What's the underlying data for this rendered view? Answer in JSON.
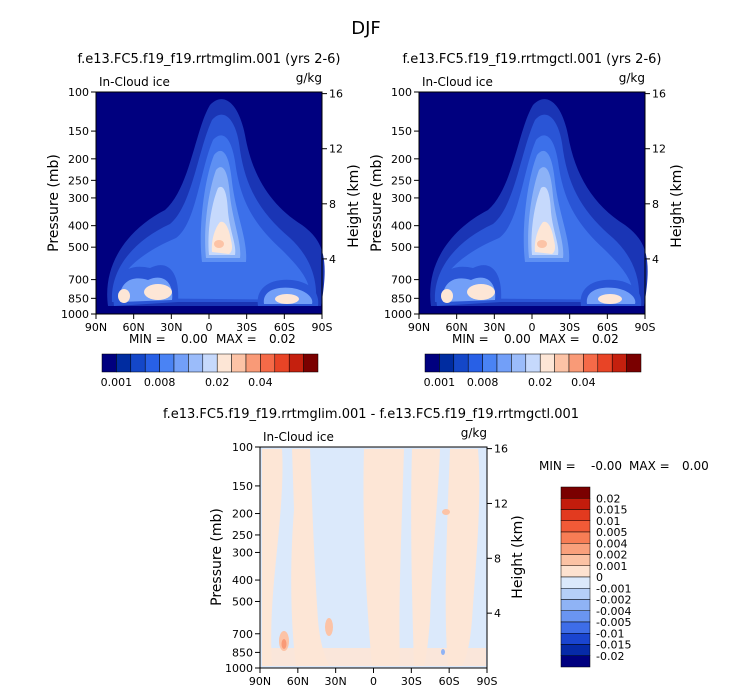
{
  "figure": {
    "title": "DJF"
  },
  "chart_data": [
    {
      "type": "heatmap",
      "title": "f.e13.FC5.f19_f19.rrtmglim.001 (yrs 2-6)",
      "variable": "In-Cloud ice",
      "units": "g/kg",
      "xlabel": "",
      "ylabel": "Pressure (mb)",
      "ylabel_right": "Height (km)",
      "x_ticks": [
        "90N",
        "60N",
        "30N",
        "0",
        "30S",
        "60S",
        "90S"
      ],
      "y_ticks": [
        "100",
        "150",
        "200",
        "250",
        "300",
        "400",
        "500",
        "700",
        "850",
        "1000"
      ],
      "y_right_ticks": [
        "16",
        "12",
        "8",
        "4"
      ],
      "min_label": "MIN =",
      "min_value": "0.00",
      "max_label": "MAX =",
      "max_value": "0.02",
      "maxima": [
        {
          "lat": 0.5,
          "pressure": 490,
          "value": 0.02
        },
        {
          "lat": 61,
          "pressure": 830,
          "value": 0.018
        },
        {
          "lat": 78,
          "pressure": 840,
          "value": 0.015
        },
        {
          "lat": -62,
          "pressure": 850,
          "value": 0.018
        }
      ],
      "colorbar": {
        "orientation": "horizontal",
        "labels": [
          "0.001",
          "0.008",
          "0.02",
          "0.04"
        ],
        "colors": [
          "#00007f",
          "#002ca0",
          "#1447c8",
          "#2860e6",
          "#4a83f4",
          "#729ff8",
          "#9bbcfa",
          "#c6d9fc",
          "#fde6d6",
          "#fcc3a6",
          "#f99a77",
          "#f56a48",
          "#e84426",
          "#c5200e",
          "#7a0000"
        ]
      }
    },
    {
      "type": "heatmap",
      "title": "f.e13.FC5.f19_f19.rrtmgctl.001 (yrs 2-6)",
      "variable": "In-Cloud ice",
      "units": "g/kg",
      "xlabel": "",
      "ylabel": "Pressure (mb)",
      "ylabel_right": "Height (km)",
      "x_ticks": [
        "90N",
        "60N",
        "30N",
        "0",
        "30S",
        "60S",
        "90S"
      ],
      "y_ticks": [
        "100",
        "150",
        "200",
        "250",
        "300",
        "400",
        "500",
        "700",
        "850",
        "1000"
      ],
      "y_right_ticks": [
        "16",
        "12",
        "8",
        "4"
      ],
      "min_label": "MIN =",
      "min_value": "0.00",
      "max_label": "MAX =",
      "max_value": "0.02",
      "maxima": [
        {
          "lat": 0.5,
          "pressure": 490,
          "value": 0.02
        },
        {
          "lat": 61,
          "pressure": 830,
          "value": 0.018
        },
        {
          "lat": 78,
          "pressure": 840,
          "value": 0.015
        },
        {
          "lat": -62,
          "pressure": 850,
          "value": 0.018
        }
      ],
      "colorbar": {
        "orientation": "horizontal",
        "labels": [
          "0.001",
          "0.008",
          "0.02",
          "0.04"
        ],
        "colors": [
          "#00007f",
          "#002ca0",
          "#1447c8",
          "#2860e6",
          "#4a83f4",
          "#729ff8",
          "#9bbcfa",
          "#c6d9fc",
          "#fde6d6",
          "#fcc3a6",
          "#f99a77",
          "#f56a48",
          "#e84426",
          "#c5200e",
          "#7a0000"
        ]
      }
    },
    {
      "type": "heatmap",
      "title": "f.e13.FC5.f19_f19.rrtmglim.001 - f.e13.FC5.f19_f19.rrtmgctl.001",
      "variable": "In-Cloud ice",
      "units": "g/kg",
      "xlabel": "",
      "ylabel": "Pressure (mb)",
      "ylabel_right": "Height (km)",
      "x_ticks": [
        "90N",
        "60N",
        "30N",
        "0",
        "30S",
        "60S",
        "90S"
      ],
      "y_ticks": [
        "100",
        "150",
        "200",
        "250",
        "300",
        "400",
        "500",
        "700",
        "850",
        "1000"
      ],
      "y_right_ticks": [
        "16",
        "12",
        "8",
        "4"
      ],
      "min_label": "MIN =",
      "min_value": "-0.00",
      "max_label": "MAX =",
      "max_value": "0.00",
      "colorbar": {
        "orientation": "vertical",
        "labels": [
          "0.02",
          "0.015",
          "0.01",
          "0.005",
          "0.004",
          "0.002",
          "0.001",
          "0",
          "-0.001",
          "-0.002",
          "-0.004",
          "-0.005",
          "-0.01",
          "-0.015",
          "-0.02"
        ],
        "colors": [
          "#7a0000",
          "#c31c0c",
          "#e23a1f",
          "#f15a37",
          "#f77d55",
          "#f9a07c",
          "#fbc2a4",
          "#fde2d0",
          "#dbe9fb",
          "#b5cff8",
          "#8fb3f5",
          "#6a95f1",
          "#3e6de8",
          "#1a45d0",
          "#062aa8",
          "#00007f"
        ]
      }
    }
  ]
}
